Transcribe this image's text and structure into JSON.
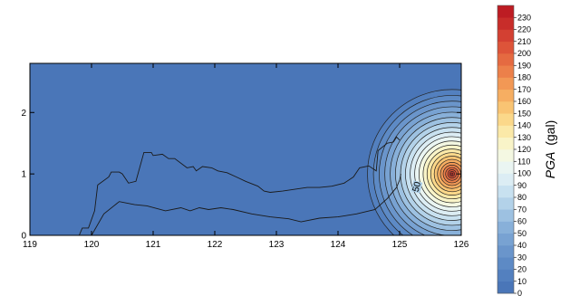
{
  "chart_data": {
    "type": "heatmap",
    "xlim": [
      119,
      126
    ],
    "ylim": [
      0,
      2.8
    ],
    "x_ticks": [
      "119",
      "120",
      "121",
      "122",
      "123",
      "124",
      "125",
      "126"
    ],
    "y_ticks": [
      "0",
      "1",
      "2"
    ],
    "peak": {
      "x": 125.85,
      "y": 1.0,
      "value": 235
    },
    "contour_levels": [
      0,
      10,
      20,
      30,
      40,
      50,
      60,
      70,
      80,
      90,
      100,
      110,
      120,
      130,
      140,
      150,
      160,
      170,
      180,
      190,
      200,
      210,
      220,
      230
    ],
    "contour_label": "50",
    "coastline_outer": [
      [
        119.6,
        0.0
      ],
      [
        119.8,
        0.0
      ],
      [
        119.85,
        0.12
      ],
      [
        119.95,
        0.12
      ],
      [
        120.05,
        0.4
      ],
      [
        120.1,
        0.82
      ],
      [
        120.28,
        0.95
      ],
      [
        120.32,
        1.03
      ],
      [
        120.45,
        1.03
      ],
      [
        120.5,
        1.0
      ],
      [
        120.6,
        0.85
      ],
      [
        120.72,
        0.88
      ],
      [
        120.85,
        1.35
      ],
      [
        120.97,
        1.35
      ],
      [
        121.0,
        1.3
      ],
      [
        121.15,
        1.32
      ],
      [
        121.25,
        1.25
      ],
      [
        121.35,
        1.25
      ],
      [
        121.55,
        1.1
      ],
      [
        121.65,
        1.12
      ],
      [
        121.7,
        1.05
      ],
      [
        121.8,
        1.12
      ],
      [
        121.95,
        1.1
      ],
      [
        122.05,
        1.05
      ],
      [
        122.2,
        1.02
      ],
      [
        122.35,
        0.95
      ],
      [
        122.5,
        0.88
      ],
      [
        122.7,
        0.8
      ],
      [
        122.8,
        0.72
      ],
      [
        122.9,
        0.7
      ],
      [
        123.1,
        0.72
      ],
      [
        123.3,
        0.75
      ],
      [
        123.5,
        0.78
      ],
      [
        123.7,
        0.78
      ],
      [
        123.9,
        0.8
      ],
      [
        124.1,
        0.85
      ],
      [
        124.25,
        0.95
      ],
      [
        124.35,
        1.1
      ],
      [
        124.5,
        1.13
      ],
      [
        124.62,
        1.05
      ],
      [
        124.65,
        1.38
      ],
      [
        124.8,
        1.5
      ],
      [
        124.9,
        1.52
      ],
      [
        124.95,
        1.6
      ],
      [
        125.0,
        1.55
      ]
    ],
    "coastline_inner": [
      [
        120.0,
        0.0
      ],
      [
        120.2,
        0.35
      ],
      [
        120.45,
        0.55
      ],
      [
        120.7,
        0.5
      ],
      [
        120.9,
        0.48
      ],
      [
        121.2,
        0.4
      ],
      [
        121.45,
        0.45
      ],
      [
        121.6,
        0.4
      ],
      [
        121.75,
        0.45
      ],
      [
        121.9,
        0.42
      ],
      [
        122.1,
        0.45
      ],
      [
        122.3,
        0.42
      ],
      [
        122.6,
        0.35
      ],
      [
        122.9,
        0.3
      ],
      [
        123.2,
        0.27
      ],
      [
        123.4,
        0.22
      ],
      [
        123.7,
        0.28
      ],
      [
        124.0,
        0.3
      ],
      [
        124.3,
        0.35
      ],
      [
        124.6,
        0.42
      ],
      [
        124.8,
        0.6
      ],
      [
        124.95,
        0.78
      ],
      [
        125.0,
        0.9
      ],
      [
        125.02,
        1.0
      ]
    ],
    "colorbar": {
      "ticks": [
        "0",
        "10",
        "20",
        "30",
        "40",
        "50",
        "60",
        "70",
        "80",
        "90",
        "100",
        "110",
        "120",
        "130",
        "140",
        "150",
        "160",
        "170",
        "180",
        "190",
        "200",
        "210",
        "220",
        "230"
      ],
      "vmin": 0,
      "vmax": 240,
      "label": "PGA",
      "unit": "(gal)",
      "colors": [
        "#4a76b8",
        "#5380bf",
        "#5d8ac5",
        "#6a95cb",
        "#78a2d2",
        "#88b0d9",
        "#9dc1e1",
        "#b3d2e9",
        "#c8e1f0",
        "#dcedf4",
        "#eaf5f2",
        "#f4f8e2",
        "#f9f4c8",
        "#fbe9a8",
        "#fbd88a",
        "#f9c473",
        "#f6ae62",
        "#f29855",
        "#ec804a",
        "#e56a41",
        "#dd5439",
        "#d34032",
        "#c82d2a",
        "#bd1c23"
      ]
    }
  }
}
